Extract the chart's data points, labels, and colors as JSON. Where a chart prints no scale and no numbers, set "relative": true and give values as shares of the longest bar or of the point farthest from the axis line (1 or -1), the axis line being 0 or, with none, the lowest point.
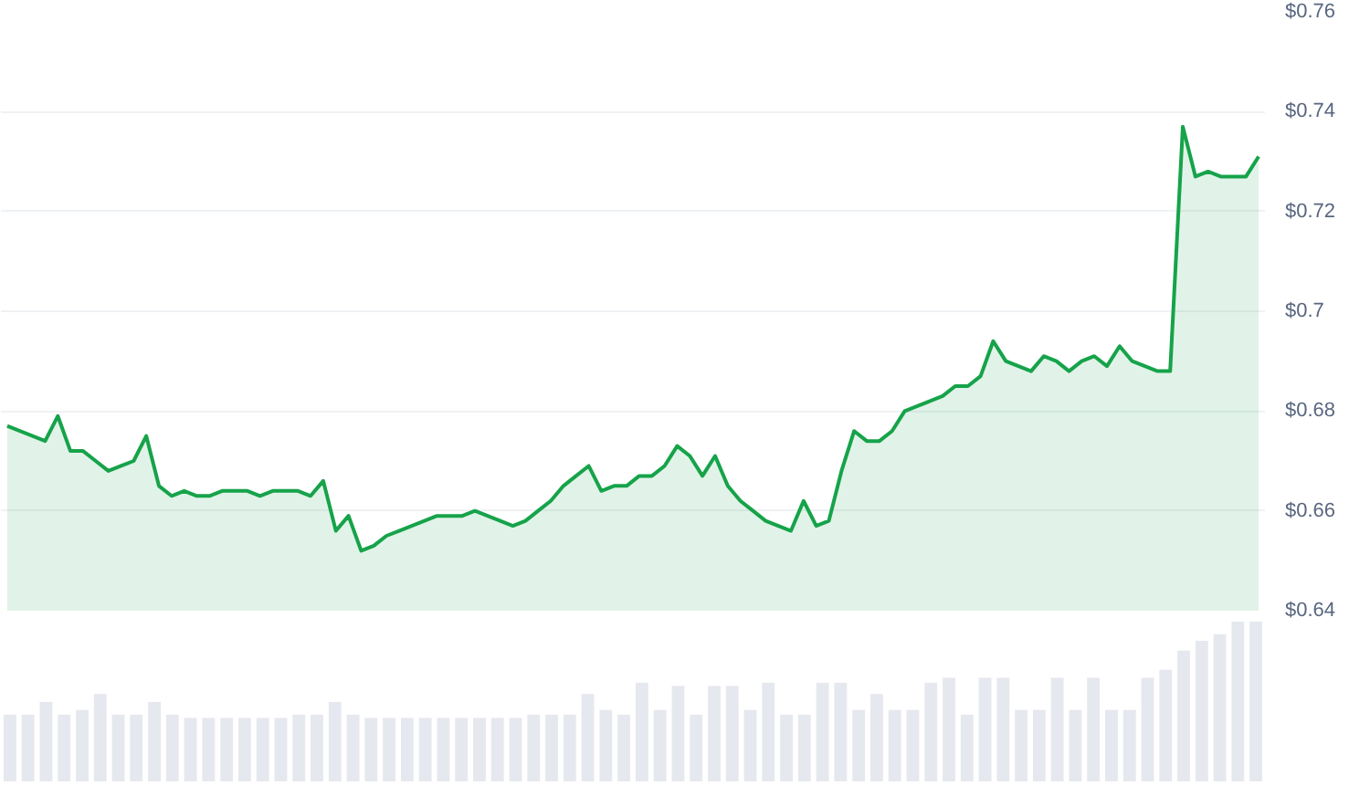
{
  "chart_data": [
    {
      "type": "area",
      "categories": [
        null,
        null,
        null,
        null,
        null,
        null,
        null,
        null,
        null,
        null,
        null,
        null,
        null,
        null,
        null,
        null,
        null,
        null,
        null,
        null,
        null,
        null,
        null,
        null,
        null,
        null,
        null,
        null,
        null,
        null,
        null,
        null,
        null,
        null,
        null,
        null,
        null,
        null,
        null,
        null,
        null,
        null,
        null,
        null,
        null,
        null,
        null,
        null,
        null,
        null,
        null,
        null,
        null,
        null,
        null,
        null,
        null,
        null,
        null,
        null,
        null,
        null,
        null,
        null,
        null,
        null,
        null,
        null,
        null,
        null,
        null,
        null,
        null,
        null,
        null,
        null,
        null,
        null,
        null,
        null,
        null,
        null,
        null,
        null,
        null,
        null,
        null,
        null,
        null,
        null,
        null,
        null,
        null,
        null,
        null,
        null,
        null,
        null,
        null,
        null
      ],
      "values": [
        0.677,
        0.676,
        0.675,
        0.674,
        0.679,
        0.672,
        0.672,
        0.67,
        0.668,
        0.669,
        0.67,
        0.675,
        0.665,
        0.663,
        0.664,
        0.663,
        0.663,
        0.664,
        0.664,
        0.664,
        0.663,
        0.664,
        0.664,
        0.664,
        0.663,
        0.666,
        0.656,
        0.659,
        0.652,
        0.653,
        0.655,
        0.656,
        0.657,
        0.658,
        0.659,
        0.659,
        0.659,
        0.66,
        0.659,
        0.658,
        0.657,
        0.658,
        0.66,
        0.662,
        0.665,
        0.667,
        0.669,
        0.664,
        0.665,
        0.665,
        0.667,
        0.667,
        0.669,
        0.673,
        0.671,
        0.667,
        0.671,
        0.665,
        0.662,
        0.66,
        0.658,
        0.657,
        0.656,
        0.662,
        0.657,
        0.658,
        0.668,
        0.676,
        0.674,
        0.674,
        0.676,
        0.68,
        0.681,
        0.682,
        0.683,
        0.685,
        0.685,
        0.687,
        0.694,
        0.69,
        0.689,
        0.688,
        0.691,
        0.69,
        0.688,
        0.69,
        0.691,
        0.689,
        0.693,
        0.69,
        0.689,
        0.688,
        0.688,
        0.737,
        0.727,
        0.728,
        0.727,
        0.727,
        0.727,
        0.731
      ],
      "color": "#16a34a",
      "ylim": [
        0.64,
        0.76
      ],
      "yticks": [
        {
          "value": 0.64,
          "label": "$0.64"
        },
        {
          "value": 0.66,
          "label": "$0.66"
        },
        {
          "value": 0.68,
          "label": "$0.68"
        },
        {
          "value": 0.7,
          "label": "$0.7"
        },
        {
          "value": 0.72,
          "label": "$0.72"
        },
        {
          "value": 0.74,
          "label": "$0.74"
        },
        {
          "value": 0.76,
          "label": "$0.76"
        }
      ],
      "grid": "y",
      "tick_labels": "y"
    },
    {
      "type": "bar",
      "relative": true,
      "tick_labels": false,
      "color": "#e6e8ef",
      "categories": [
        null,
        null,
        null,
        null,
        null,
        null,
        null,
        null,
        null,
        null,
        null,
        null,
        null,
        null,
        null,
        null,
        null,
        null,
        null,
        null,
        null,
        null,
        null,
        null,
        null,
        null,
        null,
        null,
        null,
        null,
        null,
        null,
        null,
        null,
        null,
        null,
        null,
        null,
        null,
        null,
        null,
        null,
        null,
        null,
        null,
        null,
        null,
        null,
        null,
        null,
        null,
        null,
        null,
        null,
        null,
        null,
        null,
        null,
        null,
        null,
        null,
        null,
        null,
        null,
        null,
        null,
        null,
        null,
        null,
        null
      ],
      "values": [
        0.42,
        0.42,
        0.5,
        0.42,
        0.45,
        0.55,
        0.42,
        0.42,
        0.5,
        0.42,
        0.4,
        0.4,
        0.4,
        0.4,
        0.4,
        0.4,
        0.42,
        0.42,
        0.5,
        0.42,
        0.4,
        0.4,
        0.4,
        0.4,
        0.4,
        0.4,
        0.4,
        0.4,
        0.4,
        0.42,
        0.42,
        0.42,
        0.55,
        0.45,
        0.42,
        0.62,
        0.45,
        0.6,
        0.42,
        0.6,
        0.6,
        0.45,
        0.62,
        0.42,
        0.42,
        0.62,
        0.62,
        0.45,
        0.55,
        0.45,
        0.45,
        0.62,
        0.65,
        0.42,
        0.65,
        0.65,
        0.45,
        0.45,
        0.65,
        0.45,
        0.65,
        0.45,
        0.45,
        0.65,
        0.7,
        0.82,
        0.88,
        0.92,
        1.0,
        1.0
      ]
    }
  ]
}
